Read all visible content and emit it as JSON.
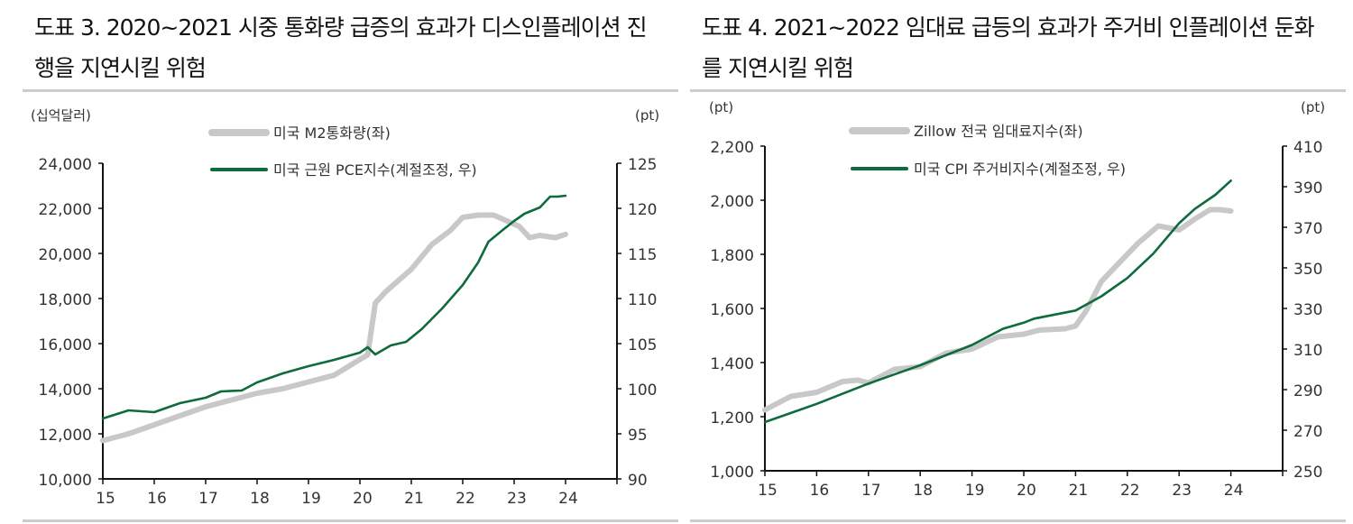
{
  "titles": [
    "도표 3. 2020~2021 시중 통화량 급증의 효과가 디스인플레이션 진행을 지연시킬 위험",
    "도표 4. 2021~2022 임대료 급등의 효과가 주거비 인플레이션 둔화를 지연시킬 위험"
  ],
  "colors": {
    "gray_series": "#c8c8c8",
    "green_series": "#0e6b3c",
    "axis": "#111111"
  },
  "chart_data": [
    {
      "type": "line",
      "title": "도표 3. 2020~2021 시중 통화량 급증의 효과가 디스인플레이션 진행을 지연시킬 위험",
      "y_left_label": "(십억달러)",
      "y_right_label": "(pt)",
      "xlim": [
        2015,
        2025
      ],
      "x_ticks": [
        15,
        16,
        17,
        18,
        19,
        20,
        21,
        22,
        23,
        24
      ],
      "y_left": {
        "lim": [
          10000,
          24000
        ],
        "ticks": [
          "10,000",
          "12,000",
          "14,000",
          "16,000",
          "18,000",
          "20,000",
          "22,000",
          "24,000"
        ],
        "values": [
          10000,
          12000,
          14000,
          16000,
          18000,
          20000,
          22000,
          24000
        ]
      },
      "y_right": {
        "lim": [
          90,
          125
        ],
        "ticks": [
          "90",
          "95",
          "100",
          "105",
          "110",
          "115",
          "120",
          "125"
        ],
        "values": [
          90,
          95,
          100,
          105,
          110,
          115,
          120,
          125
        ]
      },
      "legend_position": "top-center",
      "series": [
        {
          "name": "미국 M2통화량(좌)",
          "axis": "left",
          "color": "#c8c8c8",
          "x": [
            2015.0,
            2015.5,
            2016.0,
            2016.5,
            2017.0,
            2017.5,
            2018.0,
            2018.5,
            2019.0,
            2019.5,
            2020.0,
            2020.15,
            2020.3,
            2020.5,
            2021.0,
            2021.4,
            2021.75,
            2022.0,
            2022.3,
            2022.6,
            2022.9,
            2023.1,
            2023.3,
            2023.5,
            2023.8,
            2024.0
          ],
          "y": [
            11700,
            12000,
            12400,
            12800,
            13200,
            13500,
            13800,
            14000,
            14300,
            14600,
            15300,
            15500,
            17800,
            18300,
            19300,
            20400,
            21000,
            21600,
            21700,
            21700,
            21400,
            21200,
            20700,
            20800,
            20700,
            20850
          ]
        },
        {
          "name": "미국 근원 PCE지수(계절조정, 우)",
          "axis": "right",
          "color": "#0e6b3c",
          "x": [
            2015.0,
            2015.5,
            2016.0,
            2016.5,
            2017.0,
            2017.3,
            2017.7,
            2018.0,
            2018.5,
            2019.0,
            2019.5,
            2020.0,
            2020.15,
            2020.3,
            2020.6,
            2020.9,
            2021.2,
            2021.6,
            2022.0,
            2022.3,
            2022.5,
            2022.8,
            2023.0,
            2023.2,
            2023.5,
            2023.7,
            2023.85,
            2024.0
          ],
          "y": [
            96.7,
            97.6,
            97.4,
            98.4,
            99.0,
            99.7,
            99.8,
            100.7,
            101.7,
            102.5,
            103.2,
            104.0,
            104.6,
            103.8,
            104.8,
            105.2,
            106.6,
            108.9,
            111.5,
            114.0,
            116.3,
            117.7,
            118.6,
            119.4,
            120.1,
            121.3,
            121.3,
            121.4
          ]
        }
      ]
    },
    {
      "type": "line",
      "title": "도표 4. 2021~2022 임대료 급등의 효과가 주거비 인플레이션 둔화를 지연시킬 위험",
      "y_left_label": "(pt)",
      "y_right_label": "(pt)",
      "xlim": [
        2015,
        2025
      ],
      "x_ticks": [
        15,
        16,
        17,
        18,
        19,
        20,
        21,
        22,
        23,
        24
      ],
      "y_left": {
        "lim": [
          1000,
          2200
        ],
        "ticks": [
          "1,000",
          "1,200",
          "1,400",
          "1,600",
          "1,800",
          "2,000",
          "2,200"
        ],
        "values": [
          1000,
          1200,
          1400,
          1600,
          1800,
          2000,
          2200
        ]
      },
      "y_right": {
        "lim": [
          250,
          410
        ],
        "ticks": [
          "250",
          "270",
          "290",
          "310",
          "330",
          "350",
          "370",
          "390",
          "410"
        ],
        "values": [
          250,
          270,
          290,
          310,
          330,
          350,
          370,
          390,
          410
        ]
      },
      "legend_position": "top-center",
      "series": [
        {
          "name": "Zillow 전국 임대료지수(좌)",
          "axis": "left",
          "color": "#c8c8c8",
          "x": [
            2015.0,
            2015.5,
            2016.0,
            2016.5,
            2016.8,
            2017.0,
            2017.5,
            2018.0,
            2018.5,
            2019.0,
            2019.5,
            2020.0,
            2020.3,
            2020.8,
            2021.0,
            2021.2,
            2021.5,
            2021.8,
            2022.2,
            2022.6,
            2023.0,
            2023.3,
            2023.6,
            2023.8,
            2024.0
          ],
          "y": [
            1225,
            1275,
            1290,
            1330,
            1335,
            1325,
            1375,
            1385,
            1435,
            1450,
            1495,
            1505,
            1520,
            1525,
            1535,
            1590,
            1700,
            1760,
            1840,
            1905,
            1890,
            1930,
            1965,
            1965,
            1960
          ]
        },
        {
          "name": "미국 CPI 주거비지수(계절조정, 우)",
          "axis": "right",
          "color": "#0e6b3c",
          "x": [
            2015.0,
            2016.0,
            2017.0,
            2018.0,
            2019.0,
            2019.6,
            2020.0,
            2020.2,
            2020.6,
            2021.0,
            2021.5,
            2022.0,
            2022.5,
            2023.0,
            2023.3,
            2023.7,
            2024.0
          ],
          "y": [
            274,
            283,
            293,
            302,
            312,
            320,
            323,
            325,
            327,
            329,
            336,
            345,
            357,
            372,
            379,
            386,
            393
          ]
        }
      ]
    }
  ]
}
